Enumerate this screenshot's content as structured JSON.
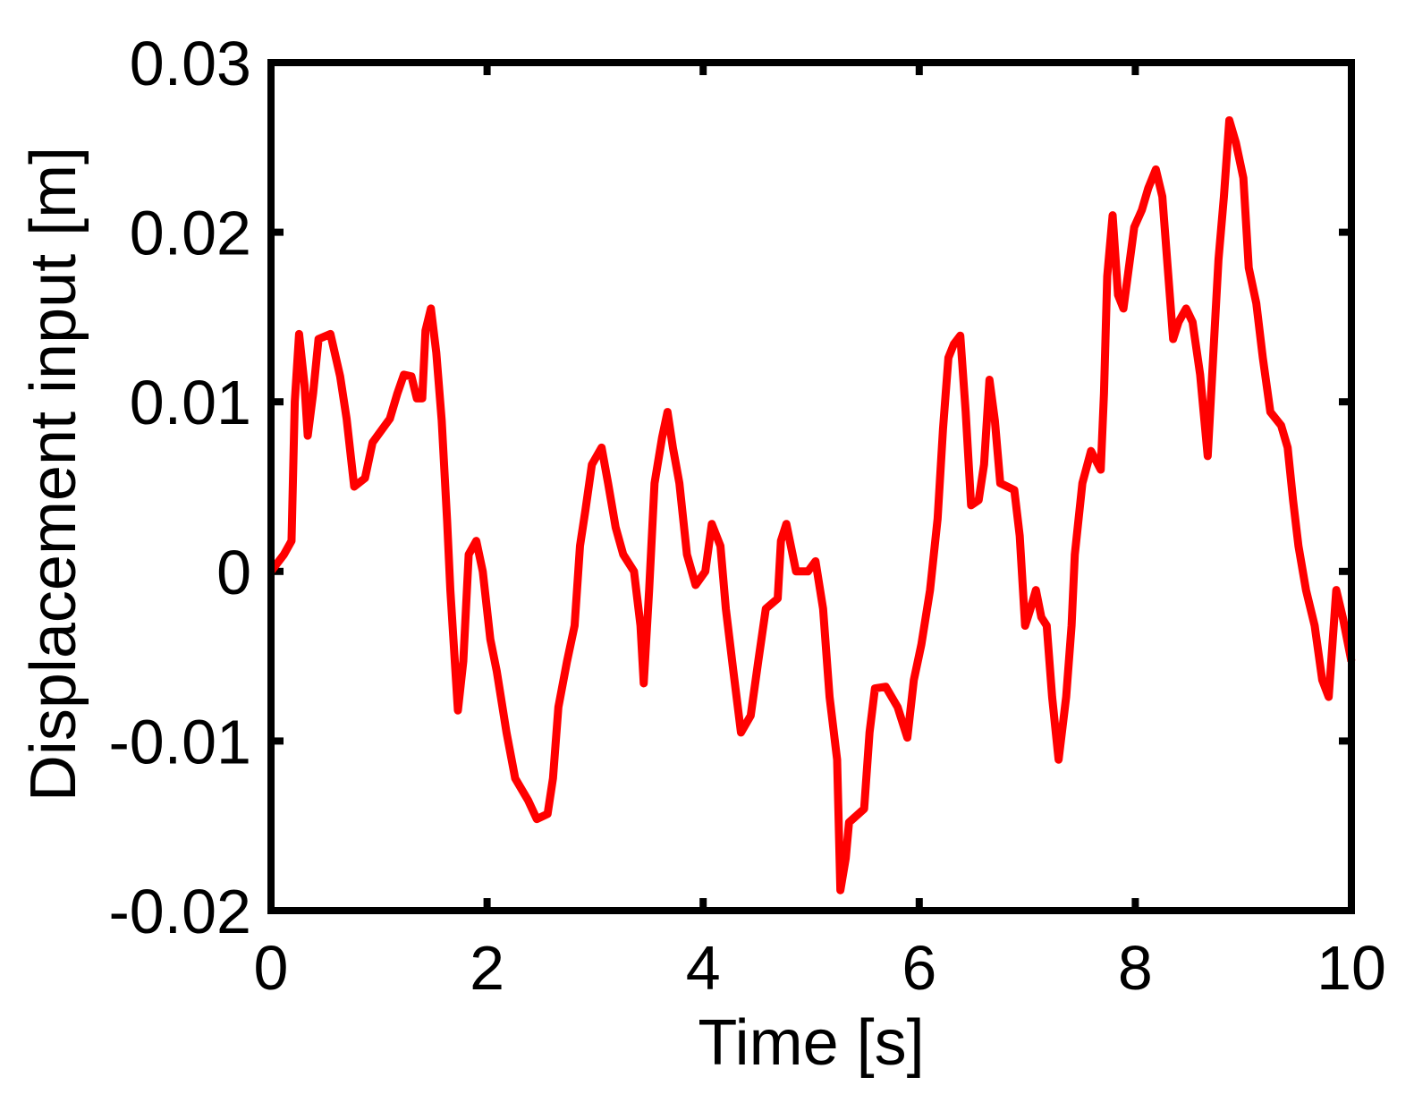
{
  "chart_data": {
    "type": "line",
    "xlabel": "Time [s]",
    "ylabel": "Displacement input [m]",
    "xlim": [
      0,
      10
    ],
    "ylim": [
      -0.02,
      0.03
    ],
    "xticks": [
      0,
      2,
      4,
      6,
      8,
      10
    ],
    "yticks": [
      -0.02,
      -0.01,
      0,
      0.01,
      0.02,
      0.03
    ],
    "grid": false,
    "series": [
      {
        "name": "Displacement input",
        "color": "#ff0000",
        "x": [
          0,
          0.12,
          0.19,
          0.22,
          0.26,
          0.31,
          0.34,
          0.39,
          0.44,
          0.55,
          0.64,
          0.7,
          0.77,
          0.87,
          0.94,
          1.1,
          1.17,
          1.23,
          1.3,
          1.35,
          1.4,
          1.43,
          1.48,
          1.53,
          1.58,
          1.63,
          1.66,
          1.73,
          1.78,
          1.83,
          1.9,
          1.96,
          2.03,
          2.09,
          2.18,
          2.26,
          2.38,
          2.46,
          2.56,
          2.61,
          2.66,
          2.74,
          2.81,
          2.86,
          2.91,
          2.97,
          3.06,
          3.12,
          3.19,
          3.26,
          3.36,
          3.42,
          3.45,
          3.5,
          3.55,
          3.62,
          3.67,
          3.72,
          3.78,
          3.85,
          3.93,
          4.02,
          4.08,
          4.16,
          4.21,
          4.28,
          4.35,
          4.44,
          4.51,
          4.58,
          4.69,
          4.72,
          4.77,
          4.86,
          4.97,
          5.04,
          5.11,
          5.17,
          5.24,
          5.27,
          5.32,
          5.35,
          5.49,
          5.54,
          5.59,
          5.69,
          5.8,
          5.89,
          5.95,
          6.02,
          6.1,
          6.17,
          6.22,
          6.27,
          6.32,
          6.38,
          6.43,
          6.48,
          6.55,
          6.6,
          6.65,
          6.7,
          6.75,
          6.88,
          6.93,
          6.98,
          7.03,
          7.08,
          7.13,
          7.18,
          7.23,
          7.29,
          7.36,
          7.41,
          7.44,
          7.51,
          7.59,
          7.68,
          7.71,
          7.74,
          7.79,
          7.84,
          7.89,
          7.94,
          7.99,
          8.06,
          8.12,
          8.19,
          8.25,
          8.3,
          8.35,
          8.4,
          8.47,
          8.53,
          8.6,
          8.67,
          8.72,
          8.77,
          8.82,
          8.87,
          8.93,
          9.0,
          9.05,
          9.12,
          9.18,
          9.25,
          9.35,
          9.41,
          9.46,
          9.51,
          9.58,
          9.66,
          9.73,
          9.79,
          9.86,
          9.92,
          10.0
        ],
        "values": [
          0.0,
          0.001,
          0.0018,
          0.01,
          0.014,
          0.011,
          0.008,
          0.0105,
          0.0137,
          0.014,
          0.0115,
          0.009,
          0.005,
          0.0055,
          0.0076,
          0.009,
          0.0105,
          0.0116,
          0.0115,
          0.0102,
          0.0102,
          0.0142,
          0.0155,
          0.0129,
          0.0089,
          0.003,
          -0.0011,
          -0.0082,
          -0.0053,
          0.001,
          0.0018,
          0.0,
          -0.004,
          -0.0059,
          -0.0095,
          -0.0122,
          -0.0135,
          -0.0146,
          -0.0143,
          -0.0122,
          -0.008,
          -0.0053,
          -0.0032,
          0.0015,
          0.0036,
          0.0063,
          0.0073,
          0.0052,
          0.0026,
          0.001,
          0.0,
          -0.0032,
          -0.0066,
          -0.0011,
          0.0052,
          0.0079,
          0.0094,
          0.0073,
          0.0052,
          0.001,
          -0.0008,
          0.0,
          0.0028,
          0.0015,
          -0.0022,
          -0.0059,
          -0.0095,
          -0.0085,
          -0.0053,
          -0.0022,
          -0.0016,
          0.0018,
          0.0028,
          0.0,
          0.0,
          0.0006,
          -0.0022,
          -0.0074,
          -0.0111,
          -0.0188,
          -0.0169,
          -0.0148,
          -0.014,
          -0.0095,
          -0.0069,
          -0.0068,
          -0.008,
          -0.0098,
          -0.0064,
          -0.0043,
          -0.0011,
          0.0031,
          0.0084,
          0.0126,
          0.0134,
          0.0139,
          0.0094,
          0.0039,
          0.0042,
          0.0063,
          0.0113,
          0.0089,
          0.0052,
          0.0048,
          0.0021,
          -0.0032,
          -0.0022,
          -0.0011,
          -0.0027,
          -0.0032,
          -0.0074,
          -0.0111,
          -0.0074,
          -0.0032,
          0.001,
          0.0052,
          0.0071,
          0.006,
          0.0105,
          0.0174,
          0.021,
          0.0163,
          0.0155,
          0.0179,
          0.0203,
          0.0213,
          0.0226,
          0.0237,
          0.0221,
          0.0179,
          0.0137,
          0.0147,
          0.0155,
          0.0147,
          0.0116,
          0.0068,
          0.0126,
          0.0184,
          0.0221,
          0.0266,
          0.0253,
          0.0232,
          0.0179,
          0.0158,
          0.0126,
          0.0094,
          0.0086,
          0.0073,
          0.0042,
          0.0015,
          -0.0011,
          -0.0032,
          -0.0064,
          -0.0074,
          -0.0011,
          -0.0027,
          -0.0053
        ]
      }
    ]
  }
}
